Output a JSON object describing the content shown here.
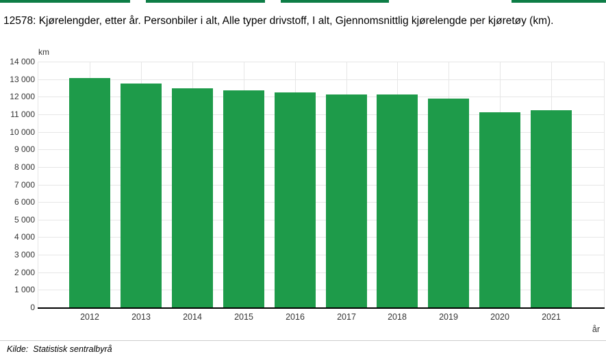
{
  "page": {
    "title": "12578: Kjørelengder, etter år. Personbiler i alt, Alle typer drivstoff, I alt, Gjennomsnittlig kjørelengde per kjøretøy (km)."
  },
  "source": {
    "label": "Kilde:",
    "value": "Statistisk sentralbyrå"
  },
  "colors": {
    "bar": "#1e9b4a",
    "top_tab": "#0d7d46",
    "gridline": "#e6e6e6",
    "axis": "#000000",
    "tick_text": "#333333"
  },
  "chart_data": {
    "type": "bar",
    "title": "12578: Kjørelengder, etter år. Personbiler i alt, Alle typer drivstoff, I alt, Gjennomsnittlig kjørelengde per kjøretøy (km).",
    "categories": [
      "2012",
      "2013",
      "2014",
      "2015",
      "2016",
      "2017",
      "2018",
      "2019",
      "2020",
      "2021"
    ],
    "values": [
      13060,
      12760,
      12490,
      12360,
      12230,
      12140,
      12130,
      11900,
      11120,
      11240
    ],
    "xlabel": "år",
    "ylabel": "km",
    "ylim": [
      0,
      14000
    ],
    "ytick_step": 1000,
    "ytick_labels": [
      "0",
      "1 000",
      "2 000",
      "3 000",
      "4 000",
      "5 000",
      "6 000",
      "7 000",
      "8 000",
      "9 000",
      "10 000",
      "11 000",
      "12 000",
      "13 000",
      "14 000"
    ],
    "grid": true,
    "legend": "none"
  }
}
